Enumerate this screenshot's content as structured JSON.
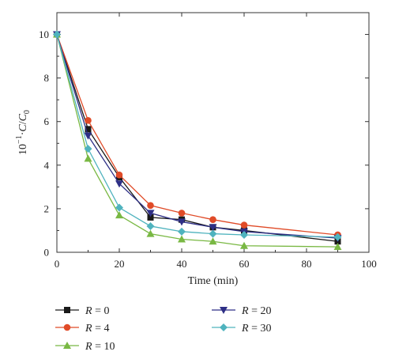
{
  "chart_data": {
    "type": "line",
    "xlabel": "Time (min)",
    "ylabel": "10−1·C/C0",
    "xlim": [
      0,
      100
    ],
    "ylim": [
      0,
      11
    ],
    "xticks": [
      0,
      20,
      40,
      60,
      80,
      100
    ],
    "yticks": [
      0,
      2,
      4,
      6,
      8,
      10
    ],
    "grid": false,
    "legend_position": "bottom",
    "series": [
      {
        "name": "R = 0",
        "label_var": "R",
        "label_eq": "= 0",
        "color": "#1a1a1a",
        "marker": "square",
        "x": [
          0,
          10,
          20,
          30,
          40,
          50,
          60,
          90
        ],
        "y": [
          10,
          5.65,
          3.45,
          1.6,
          1.5,
          1.15,
          1.0,
          0.5
        ]
      },
      {
        "name": "R = 4",
        "label_var": "R",
        "label_eq": "= 4",
        "color": "#e04b28",
        "marker": "circle",
        "x": [
          0,
          10,
          20,
          30,
          40,
          50,
          60,
          90
        ],
        "y": [
          10,
          6.05,
          3.55,
          2.15,
          1.8,
          1.5,
          1.25,
          0.8
        ]
      },
      {
        "name": "R = 10",
        "label_var": "R",
        "label_eq": "= 10",
        "color": "#79b843",
        "marker": "triangle-up",
        "x": [
          0,
          10,
          20,
          30,
          40,
          50,
          60,
          90
        ],
        "y": [
          10,
          4.3,
          1.7,
          0.85,
          0.6,
          0.5,
          0.3,
          0.25
        ]
      },
      {
        "name": "R = 20",
        "label_var": "R",
        "label_eq": "= 20",
        "color": "#2e2f86",
        "marker": "triangle-down",
        "x": [
          0,
          10,
          20,
          30,
          40,
          50,
          60,
          90
        ],
        "y": [
          10,
          5.35,
          3.15,
          1.8,
          1.4,
          1.15,
          0.95,
          0.65
        ]
      },
      {
        "name": "R = 30",
        "label_var": "R",
        "label_eq": "= 30",
        "color": "#4fb3be",
        "marker": "diamond",
        "x": [
          0,
          10,
          20,
          30,
          40,
          50,
          60,
          90
        ],
        "y": [
          10,
          4.75,
          2.05,
          1.2,
          0.95,
          0.85,
          0.8,
          0.7
        ]
      }
    ]
  }
}
